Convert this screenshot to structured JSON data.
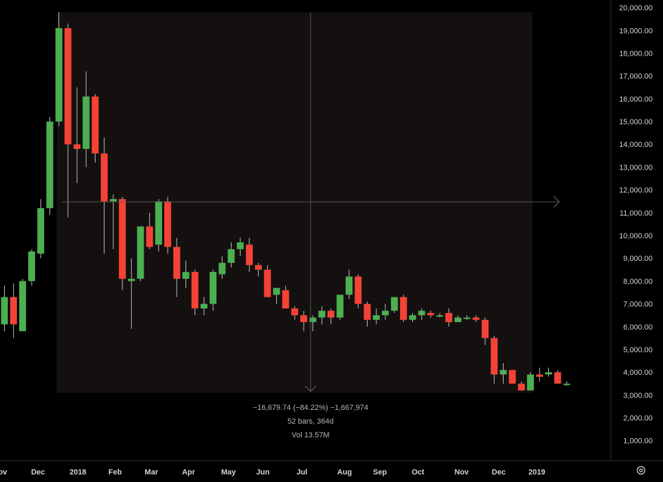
{
  "colors": {
    "background": "#000000",
    "up": "#4caf50",
    "down": "#f44336",
    "wick": "#bdbdbd",
    "measure_fill": "#141010",
    "crosshair": "#555555",
    "text": "#d1d4dc",
    "measure_text": "#b2b5be"
  },
  "measure": {
    "line1": "−16,679.74 (−84.22%) −1,667,974",
    "line2": "52 bars, 364d",
    "line3": "Vol 13.57M",
    "from_week": 5,
    "to_week": 57
  },
  "settings_icon": "settings-gear-icon",
  "chart_data": {
    "type": "candlestick",
    "ylim": [
      0,
      20000
    ],
    "y_ticks": [
      "20,000.00",
      "19,000.00",
      "18,000.00",
      "17,000.00",
      "16,000.00",
      "15,000.00",
      "14,000.00",
      "13,000.00",
      "12,000.00",
      "11,000.00",
      "10,000.00",
      "9,000.00",
      "8,000.00",
      "7,000.00",
      "6,000.00",
      "5,000.00",
      "4,000.00",
      "3,000.00",
      "2,000.00",
      "1,000.00"
    ],
    "x_labels": [
      {
        "text": "Nov",
        "week": -0.5
      },
      {
        "text": "Dec",
        "week": 3.7
      },
      {
        "text": "2018",
        "week": 8.1
      },
      {
        "text": "Feb",
        "week": 12.2
      },
      {
        "text": "Mar",
        "week": 16.2
      },
      {
        "text": "Apr",
        "week": 20.3
      },
      {
        "text": "May",
        "week": 24.7
      },
      {
        "text": "Jun",
        "week": 28.5
      },
      {
        "text": "Jul",
        "week": 32.8
      },
      {
        "text": "Aug",
        "week": 37.5
      },
      {
        "text": "Sep",
        "week": 41.4
      },
      {
        "text": "Oct",
        "week": 45.6
      },
      {
        "text": "Nov",
        "week": 50.4
      },
      {
        "text": "Dec",
        "week": 54.5
      },
      {
        "text": "2019",
        "week": 58.7
      }
    ],
    "candles": [
      {
        "o": 6100,
        "h": 7800,
        "l": 5800,
        "c": 7300
      },
      {
        "o": 7300,
        "h": 7900,
        "l": 5500,
        "c": 6100
      },
      {
        "o": 5800,
        "h": 8100,
        "l": 5800,
        "c": 8000
      },
      {
        "o": 8000,
        "h": 9400,
        "l": 7800,
        "c": 9300
      },
      {
        "o": 9200,
        "h": 11600,
        "l": 9000,
        "c": 11200
      },
      {
        "o": 11200,
        "h": 15200,
        "l": 10900,
        "c": 15000
      },
      {
        "o": 15000,
        "h": 19800,
        "l": 14800,
        "c": 19100
      },
      {
        "o": 19100,
        "h": 19300,
        "l": 10800,
        "c": 14000
      },
      {
        "o": 14000,
        "h": 16500,
        "l": 12300,
        "c": 13800
      },
      {
        "o": 13800,
        "h": 17200,
        "l": 13000,
        "c": 16100
      },
      {
        "o": 16100,
        "h": 16200,
        "l": 13200,
        "c": 13600
      },
      {
        "o": 13600,
        "h": 14300,
        "l": 9200,
        "c": 11500
      },
      {
        "o": 11500,
        "h": 11800,
        "l": 9400,
        "c": 11600
      },
      {
        "o": 11600,
        "h": 11700,
        "l": 7600,
        "c": 8100
      },
      {
        "o": 8000,
        "h": 9000,
        "l": 5900,
        "c": 8100
      },
      {
        "o": 8100,
        "h": 10400,
        "l": 8000,
        "c": 10400
      },
      {
        "o": 10400,
        "h": 11000,
        "l": 9400,
        "c": 9500
      },
      {
        "o": 9600,
        "h": 11600,
        "l": 9300,
        "c": 11500
      },
      {
        "o": 11500,
        "h": 11700,
        "l": 9200,
        "c": 9500
      },
      {
        "o": 9500,
        "h": 9900,
        "l": 7300,
        "c": 8100
      },
      {
        "o": 8100,
        "h": 8900,
        "l": 7700,
        "c": 8400
      },
      {
        "o": 8400,
        "h": 8500,
        "l": 6500,
        "c": 6800
      },
      {
        "o": 6800,
        "h": 7300,
        "l": 6500,
        "c": 7000
      },
      {
        "o": 7000,
        "h": 8500,
        "l": 6700,
        "c": 8400
      },
      {
        "o": 8300,
        "h": 9100,
        "l": 8100,
        "c": 8800
      },
      {
        "o": 8800,
        "h": 9700,
        "l": 8600,
        "c": 9400
      },
      {
        "o": 9400,
        "h": 9900,
        "l": 9100,
        "c": 9700
      },
      {
        "o": 9600,
        "h": 9900,
        "l": 8400,
        "c": 8700
      },
      {
        "o": 8700,
        "h": 8800,
        "l": 8200,
        "c": 8500
      },
      {
        "o": 8500,
        "h": 8700,
        "l": 7300,
        "c": 7300
      },
      {
        "o": 7400,
        "h": 7700,
        "l": 7000,
        "c": 7700
      },
      {
        "o": 7600,
        "h": 7800,
        "l": 6800,
        "c": 6800
      },
      {
        "o": 6800,
        "h": 6900,
        "l": 6300,
        "c": 6500
      },
      {
        "o": 6500,
        "h": 6700,
        "l": 5800,
        "c": 6200
      },
      {
        "o": 6200,
        "h": 6500,
        "l": 5800,
        "c": 6400
      },
      {
        "o": 6400,
        "h": 6900,
        "l": 6100,
        "c": 6700
      },
      {
        "o": 6700,
        "h": 6800,
        "l": 6100,
        "c": 6400
      },
      {
        "o": 6400,
        "h": 7400,
        "l": 6300,
        "c": 7400
      },
      {
        "o": 7400,
        "h": 8500,
        "l": 7200,
        "c": 8200
      },
      {
        "o": 8200,
        "h": 8300,
        "l": 6800,
        "c": 7000
      },
      {
        "o": 7000,
        "h": 7100,
        "l": 6000,
        "c": 6300
      },
      {
        "o": 6300,
        "h": 6800,
        "l": 6100,
        "c": 6500
      },
      {
        "o": 6500,
        "h": 7000,
        "l": 6300,
        "c": 6700
      },
      {
        "o": 6700,
        "h": 7300,
        "l": 6600,
        "c": 7300
      },
      {
        "o": 7300,
        "h": 7400,
        "l": 6200,
        "c": 6300
      },
      {
        "o": 6300,
        "h": 6600,
        "l": 6200,
        "c": 6500
      },
      {
        "o": 6500,
        "h": 6800,
        "l": 6300,
        "c": 6700
      },
      {
        "o": 6600,
        "h": 6700,
        "l": 6400,
        "c": 6500
      },
      {
        "o": 6500,
        "h": 6600,
        "l": 6400,
        "c": 6500
      },
      {
        "o": 6600,
        "h": 6800,
        "l": 6000,
        "c": 6200
      },
      {
        "o": 6200,
        "h": 6500,
        "l": 6200,
        "c": 6400
      },
      {
        "o": 6400,
        "h": 6500,
        "l": 6300,
        "c": 6400
      },
      {
        "o": 6400,
        "h": 6500,
        "l": 6200,
        "c": 6300
      },
      {
        "o": 6300,
        "h": 6400,
        "l": 5200,
        "c": 5500
      },
      {
        "o": 5500,
        "h": 5600,
        "l": 3500,
        "c": 3900
      },
      {
        "o": 3900,
        "h": 4400,
        "l": 3500,
        "c": 4100
      },
      {
        "o": 4100,
        "h": 4100,
        "l": 3500,
        "c": 3500
      },
      {
        "o": 3500,
        "h": 3600,
        "l": 3200,
        "c": 3200
      },
      {
        "o": 3200,
        "h": 4000,
        "l": 3200,
        "c": 3900
      },
      {
        "o": 3900,
        "h": 4200,
        "l": 3600,
        "c": 3800
      },
      {
        "o": 3900,
        "h": 4200,
        "l": 3800,
        "c": 4000
      },
      {
        "o": 4000,
        "h": 4100,
        "l": 3500,
        "c": 3500
      },
      {
        "o": 3500,
        "h": 3600,
        "l": 3400,
        "c": 3500
      }
    ]
  }
}
